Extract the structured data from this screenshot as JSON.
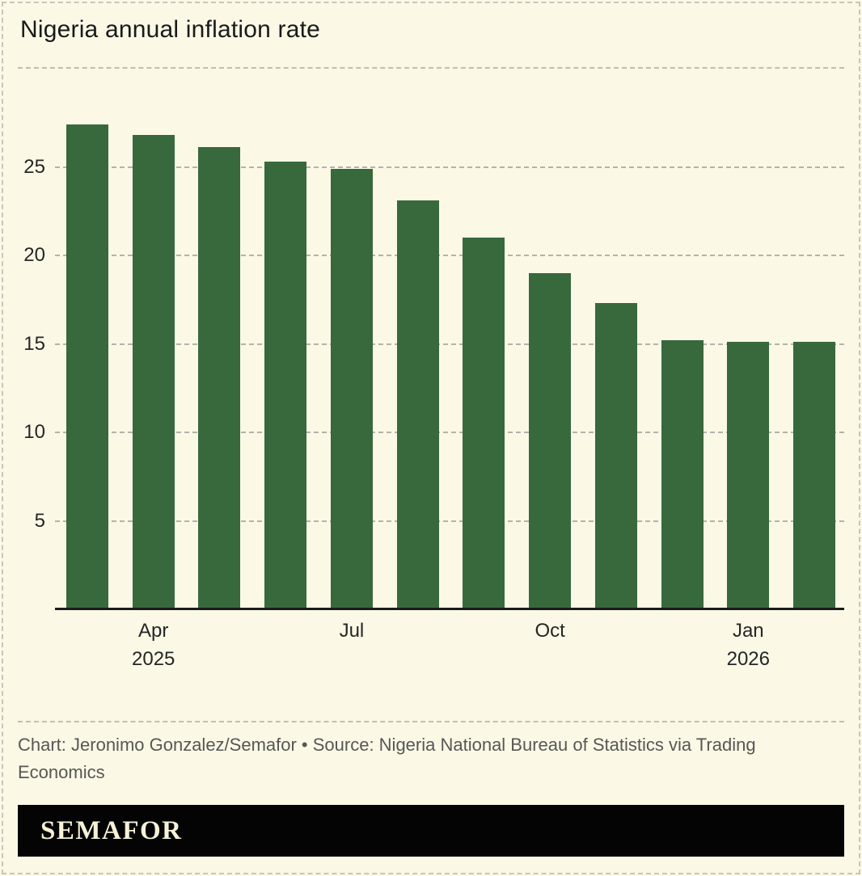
{
  "page": {
    "background_color": "#fbf8e6",
    "border_color": "#c6c6bb"
  },
  "header": {
    "title": "Nigeria annual inflation rate"
  },
  "chart_data": {
    "type": "bar",
    "title": "Nigeria annual inflation rate",
    "categories": [
      "Mar 2025",
      "Apr 2025",
      "May 2025",
      "Jun 2025",
      "Jul 2025",
      "Aug 2025",
      "Sep 2025",
      "Oct 2025",
      "Nov 2025",
      "Dec 2025",
      "Jan 2026",
      "Feb 2026"
    ],
    "values": [
      27.4,
      26.8,
      26.1,
      25.3,
      24.9,
      23.1,
      21.0,
      19.0,
      17.3,
      15.2,
      15.1,
      15.1
    ],
    "xlabel": "",
    "ylabel": "",
    "ylim": [
      0,
      30
    ],
    "y_ticks": [
      5,
      10,
      15,
      20,
      25
    ],
    "x_ticks": [
      {
        "bar_index": 1,
        "month": "Apr",
        "year": "2025"
      },
      {
        "bar_index": 4,
        "month": "Jul",
        "year": ""
      },
      {
        "bar_index": 7,
        "month": "Oct",
        "year": ""
      },
      {
        "bar_index": 10,
        "month": "Jan",
        "year": "2026"
      }
    ],
    "grid": "horizontal-dashed",
    "legend": "none",
    "bar_color": "#37693d",
    "gridline_color": "#b3b3a9",
    "axis_color": "#1b1b1b"
  },
  "footer": {
    "credit": "Chart: Jeronimo Gonzalez/Semafor • Source: Nigeria National Bureau of Statistics via Trading Economics"
  },
  "brand": {
    "wordmark": "SEMAFOR",
    "bar_color": "#040404",
    "text_color": "#f6f1d7"
  }
}
